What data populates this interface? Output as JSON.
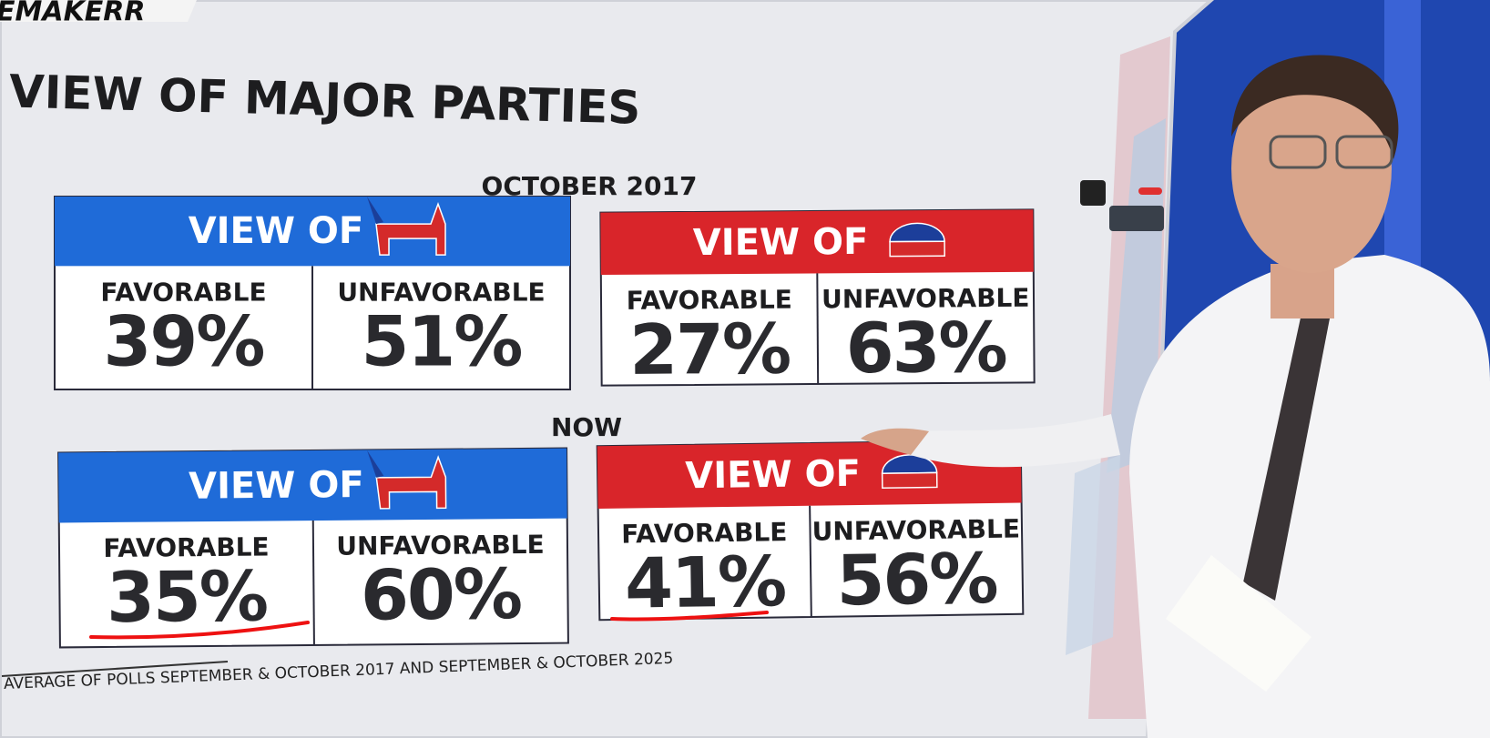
{
  "logo": "EMAKERR",
  "title": "VIEW OF MAJOR PARTIES",
  "sections": [
    {
      "label": "OCTOBER 2017",
      "panels": [
        {
          "header": "VIEW OF",
          "cells": [
            {
              "label": "FAVORABLE",
              "value": "39%"
            },
            {
              "label": "UNFAVORABLE",
              "value": "51%"
            }
          ]
        },
        {
          "header": "VIEW OF",
          "cells": [
            {
              "label": "FAVORABLE",
              "value": "27%"
            },
            {
              "label": "UNFAVORABLE",
              "value": "63%"
            }
          ]
        }
      ]
    },
    {
      "label": "NOW",
      "panels": [
        {
          "header": "VIEW OF",
          "cells": [
            {
              "label": "FAVORABLE",
              "value": "35%"
            },
            {
              "label": "UNFAVORABLE",
              "value": "60%"
            }
          ]
        },
        {
          "header": "VIEW OF",
          "cells": [
            {
              "label": "FAVORABLE",
              "value": "41%"
            },
            {
              "label": "UNFAVORABLE",
              "value": "56%"
            }
          ]
        }
      ]
    }
  ],
  "footer": "AVERAGE OF POLLS SEPTEMBER & OCTOBER 2017 AND SEPTEMBER & OCTOBER 2025"
}
